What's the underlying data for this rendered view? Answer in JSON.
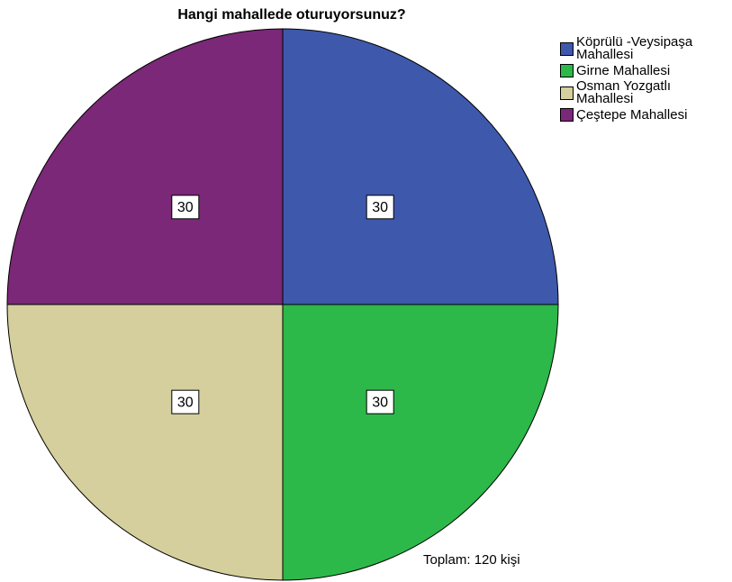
{
  "chart_data": {
    "type": "pie",
    "title": "Hangi mahallede oturuyorsunuz?",
    "categories": [
      "Köprülü -Veysipaşa Mahallesi",
      "Girne Mahallesi",
      "Osman Yozgatlı Mahallesi",
      "Çeştepe Mahallesi"
    ],
    "values": [
      30,
      30,
      30,
      30
    ],
    "colors": [
      "#3e58ac",
      "#2db84a",
      "#d4cf9c",
      "#7a2877"
    ],
    "annotation": "Toplam: 120 kişi"
  }
}
